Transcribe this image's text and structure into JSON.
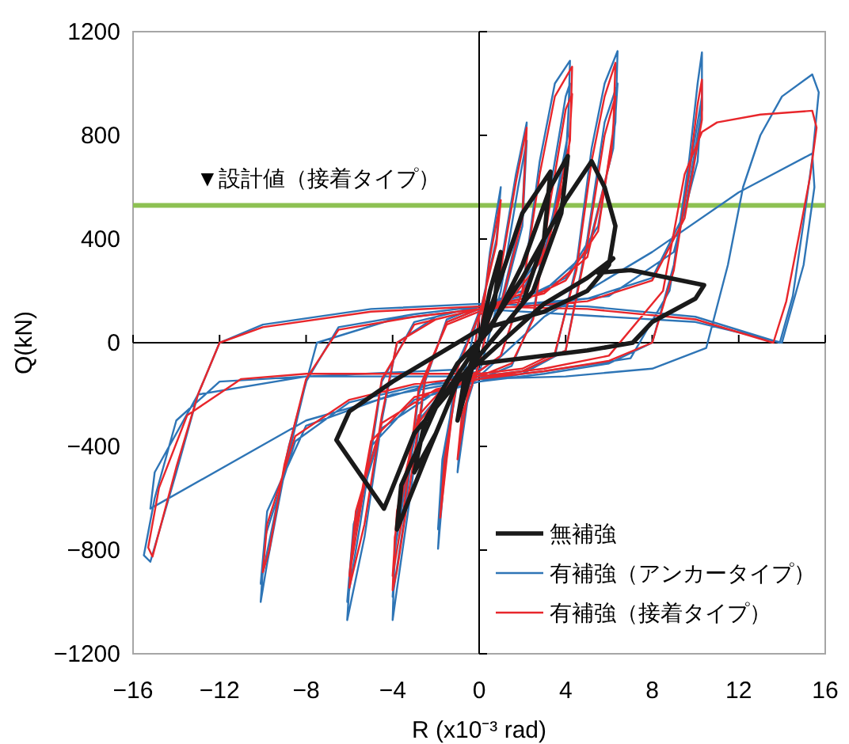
{
  "chart_data": {
    "type": "line",
    "xlabel": "R (x10⁻³ rad)",
    "ylabel": "Q(kN)",
    "xlim": [
      -16,
      16
    ],
    "xticks": [
      -16,
      -12,
      -8,
      -4,
      0,
      4,
      8,
      12,
      16
    ],
    "ylim": [
      -1200,
      1200
    ],
    "yticks": [
      -1200,
      -800,
      -400,
      0,
      400,
      800,
      1200
    ],
    "grid": false,
    "legend": "bottom right",
    "marker": "none",
    "line_style": "solid",
    "ref_lines": [
      {
        "axis": "y",
        "value": 530,
        "label": "▼設計値（接着タイプ）",
        "color": "#8dc152"
      },
      {
        "axis": "x",
        "value": 0,
        "color": "#000000"
      },
      {
        "axis": "y",
        "value": 0,
        "color": "#000000"
      }
    ],
    "series": [
      {
        "name": "無補強",
        "color": "#1a1a1a",
        "x": [
          0,
          0.5,
          1,
          0.7,
          0,
          -0.5,
          -1,
          -0.7,
          0,
          1,
          2,
          3.3,
          3,
          2,
          0.5,
          -1,
          -2,
          -3,
          -2.5,
          -1,
          0.5,
          2,
          3.3,
          4.1,
          3.8,
          2.5,
          1,
          -1,
          -2.5,
          -3.8,
          -3.6,
          -2,
          0,
          2,
          4,
          5.2,
          5.8,
          6.3,
          6,
          5,
          3,
          0,
          -2,
          -4,
          -6,
          -6.6,
          -4.4,
          -4.2,
          -3,
          -1,
          1,
          3,
          5,
          6.2,
          5.5,
          7,
          10.4,
          10,
          8,
          7.1,
          5,
          2,
          0
        ],
        "values": [
          0,
          200,
          350,
          150,
          0,
          -150,
          -300,
          -150,
          0,
          250,
          500,
          660,
          400,
          150,
          0,
          -150,
          -350,
          -500,
          -300,
          -80,
          50,
          300,
          600,
          720,
          500,
          200,
          50,
          -150,
          -450,
          -720,
          -550,
          -250,
          0,
          250,
          550,
          700,
          600,
          450,
          300,
          200,
          120,
          50,
          -50,
          -150,
          -265,
          -375,
          -640,
          -600,
          -350,
          -150,
          0,
          150,
          250,
          325,
          270,
          280,
          222,
          170,
          80,
          0,
          -30,
          -60,
          -80
        ]
      },
      {
        "name": "有補強（アンカータイプ）",
        "color": "#2e75b6",
        "x": [
          0,
          0.5,
          1,
          0.8,
          0,
          -0.5,
          -1,
          -0.8,
          0,
          1,
          1.7,
          2.2,
          2,
          1,
          0,
          -1,
          -1.6,
          -1.9,
          -1.7,
          -1,
          0,
          1,
          1.8,
          2.2,
          2,
          1,
          0,
          -1,
          -1.7,
          -1.9,
          -1.7,
          -1,
          0,
          1,
          2,
          2.8,
          3.5,
          4.2,
          4.1,
          3.2,
          2,
          0,
          -1.5,
          -2.5,
          -3.2,
          -3.8,
          -4,
          -3.9,
          -3,
          -1.5,
          0,
          1.5,
          2.5,
          3.3,
          4,
          4.2,
          4,
          3,
          1.5,
          0,
          -1.5,
          -2.8,
          -3.5,
          -4,
          -3.8,
          -2.8,
          -1.5,
          0,
          2,
          3.5,
          4.5,
          5.2,
          5.8,
          6.4,
          6.3,
          5.5,
          4,
          2,
          0,
          -2,
          -3.8,
          -4.5,
          -5.3,
          -6.1,
          -5.9,
          -5,
          -3,
          0,
          2,
          4,
          5,
          5.8,
          6.4,
          6.2,
          5,
          3,
          0,
          -3,
          -4.5,
          -5.5,
          -6.1,
          -5.8,
          -4.5,
          -2,
          0,
          3,
          6,
          8,
          9,
          9.7,
          10.1,
          10.3,
          10.3,
          9.5,
          8,
          5,
          2,
          0,
          -3,
          -6.5,
          -8,
          -9,
          -9.8,
          -10.1,
          -9.9,
          -8.5,
          -6,
          -3,
          0,
          3,
          7,
          8.8,
          9.8,
          10.3,
          10.1,
          9,
          6,
          2,
          0,
          -4,
          -7.5,
          -8.8,
          -10.1,
          -9.8,
          -8,
          -4,
          0,
          4,
          8,
          10.5,
          11.5,
          12.2,
          13,
          14,
          15.4,
          15.7,
          15.4,
          15,
          14.5,
          13.9,
          10,
          5,
          0,
          -5,
          -10,
          -12,
          -13,
          -14,
          -15.2,
          -15.5,
          -15,
          -14,
          -12,
          -8,
          -3,
          0,
          3,
          8,
          12,
          15.4,
          15.5,
          15,
          14,
          10,
          0,
          -0.7,
          -8,
          -15.2,
          -15,
          -13,
          -8,
          0
        ],
        "values": [
          0,
          350,
          600,
          400,
          100,
          -200,
          -500,
          -300,
          -80,
          300,
          650,
          850,
          500,
          150,
          120,
          -100,
          -500,
          -795,
          -500,
          -150,
          -120,
          200,
          600,
          780,
          450,
          130,
          110,
          -80,
          -500,
          -720,
          -450,
          -130,
          -110,
          -50,
          200,
          700,
          1000,
          1088,
          800,
          400,
          200,
          140,
          90,
          -150,
          -600,
          -950,
          -1070,
          -800,
          -350,
          -180,
          -140,
          -90,
          100,
          600,
          950,
          1000,
          700,
          350,
          180,
          130,
          80,
          -200,
          -700,
          -980,
          -700,
          -300,
          -170,
          -130,
          -110,
          -50,
          300,
          750,
          1000,
          1125,
          850,
          450,
          250,
          170,
          140,
          100,
          0,
          -300,
          -750,
          -1070,
          -800,
          -400,
          -220,
          -150,
          -120,
          -30,
          400,
          850,
          1000,
          750,
          350,
          200,
          140,
          80,
          -150,
          -700,
          -1000,
          -700,
          -330,
          -190,
          -150,
          -120,
          -80,
          0,
          300,
          700,
          1000,
          1120,
          900,
          500,
          250,
          170,
          150,
          140,
          110,
          60,
          -150,
          -500,
          -850,
          -1000,
          -750,
          -380,
          -230,
          -170,
          -140,
          -110,
          -60,
          200,
          700,
          950,
          700,
          350,
          180,
          140,
          130,
          90,
          0,
          -400,
          -930,
          -650,
          -320,
          -200,
          -140,
          -130,
          -100,
          -20,
          300,
          600,
          800,
          950,
          1035,
          966,
          710,
          466,
          180,
          0,
          100,
          140,
          150,
          130,
          70,
          0,
          -200,
          -500,
          -845,
          -820,
          -600,
          -300,
          -150,
          -130,
          -130,
          -130,
          100,
          350,
          580,
          730,
          600,
          300,
          0,
          80,
          130,
          -125,
          -300,
          -640,
          -500,
          -200,
          -130,
          -100
        ]
      },
      {
        "name": "有補強（接着タイプ）",
        "color": "#e8262b",
        "x": [
          0,
          0.5,
          1,
          0.8,
          0,
          -0.5,
          -1,
          -0.8,
          0,
          1,
          1.7,
          2.2,
          2,
          1,
          0,
          -1,
          -1.5,
          -1.8,
          -1.6,
          -1,
          0,
          1,
          2,
          2.8,
          3.5,
          4.3,
          4.2,
          3.2,
          2,
          0,
          -1.5,
          -2.5,
          -3.2,
          -3.8,
          -4,
          -3.9,
          -3,
          -1.5,
          0,
          1.5,
          2.5,
          3.3,
          4,
          4.3,
          4.1,
          3,
          1.5,
          0,
          -1.5,
          -2.8,
          -3.5,
          -4,
          -3.8,
          -2.8,
          -1.5,
          0,
          2,
          3.5,
          4.5,
          5.2,
          5.8,
          6.3,
          6.2,
          5.5,
          4,
          2,
          0,
          -2,
          -3.8,
          -4.5,
          -5.3,
          -6,
          -5.8,
          -5,
          -3,
          0,
          2,
          4,
          5,
          5.8,
          6.3,
          6.1,
          5,
          3,
          0,
          -3,
          -4.5,
          -5.5,
          -6,
          -5.7,
          -4.5,
          -2,
          0,
          3,
          6,
          8,
          9,
          9.7,
          10.1,
          10.3,
          10.3,
          9.5,
          8,
          5,
          2,
          0,
          -3,
          -6.5,
          -8,
          -9,
          -9.7,
          -10,
          -9.8,
          -8.5,
          -6,
          -3,
          0,
          3,
          6,
          8.5,
          9.5,
          10.3,
          11,
          13,
          15.4,
          15.6,
          15.3,
          14.8,
          14.2,
          13.6,
          10,
          5,
          0,
          -5,
          -10,
          -12,
          -13,
          -14,
          -15.1,
          -15.3,
          -14.8,
          -13.5,
          -11,
          -8,
          -3,
          0
        ],
        "values": [
          0,
          330,
          550,
          380,
          100,
          -180,
          -450,
          -280,
          -80,
          280,
          620,
          830,
          480,
          140,
          110,
          -100,
          -450,
          -675,
          -450,
          -140,
          -110,
          -50,
          200,
          650,
          950,
          1065,
          780,
          380,
          190,
          130,
          80,
          -140,
          -550,
          -880,
          -955,
          -750,
          -330,
          -170,
          -130,
          -80,
          90,
          550,
          900,
          960,
          680,
          330,
          170,
          120,
          70,
          -180,
          -650,
          -900,
          -650,
          -280,
          -160,
          -120,
          -100,
          -40,
          280,
          700,
          950,
          1080,
          820,
          430,
          240,
          160,
          130,
          90,
          0,
          -280,
          -700,
          -945,
          -750,
          -380,
          -210,
          -140,
          -110,
          -30,
          380,
          800,
          950,
          720,
          330,
          190,
          130,
          70,
          -140,
          -650,
          -900,
          -650,
          -310,
          -180,
          -140,
          -110,
          -70,
          0,
          280,
          650,
          920,
          1015,
          860,
          480,
          240,
          160,
          140,
          130,
          100,
          50,
          -140,
          -470,
          -800,
          -885,
          -700,
          -360,
          -220,
          -160,
          -130,
          -100,
          -50,
          200,
          650,
          813,
          850,
          880,
          895,
          830,
          640,
          420,
          160,
          0,
          90,
          130,
          140,
          120,
          60,
          0,
          -200,
          -480,
          -825,
          -790,
          -560,
          -280,
          -140,
          -120,
          -120,
          -120
        ]
      }
    ]
  }
}
